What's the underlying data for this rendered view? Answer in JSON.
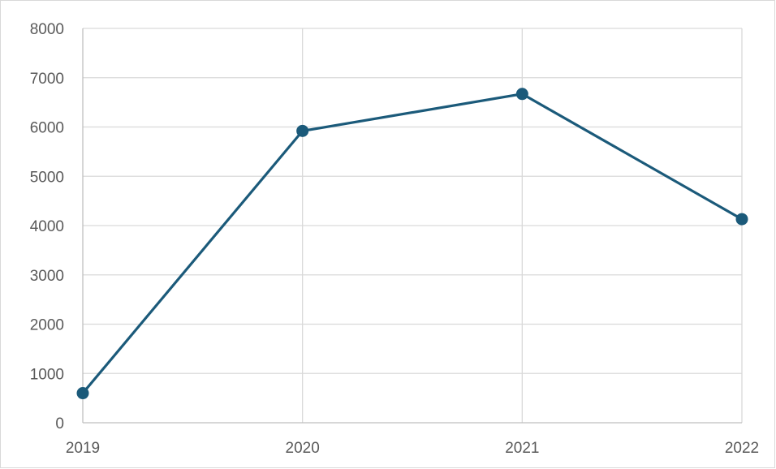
{
  "chart_data": {
    "type": "line",
    "title": "",
    "xlabel": "",
    "ylabel": "",
    "categories": [
      "2019",
      "2020",
      "2021",
      "2022"
    ],
    "series": [
      {
        "values": [
          600,
          5920,
          6670,
          4130
        ]
      }
    ],
    "ylim": [
      0,
      8000
    ],
    "yticks": [
      "0",
      "1000",
      "2000",
      "3000",
      "4000",
      "5000",
      "6000",
      "7000",
      "8000"
    ],
    "grid": true,
    "legend": "none",
    "colors": {
      "line": "#1b5a7a",
      "grid": "#d9d9d9",
      "axis": "#bfbfbf",
      "text": "#595959"
    }
  }
}
